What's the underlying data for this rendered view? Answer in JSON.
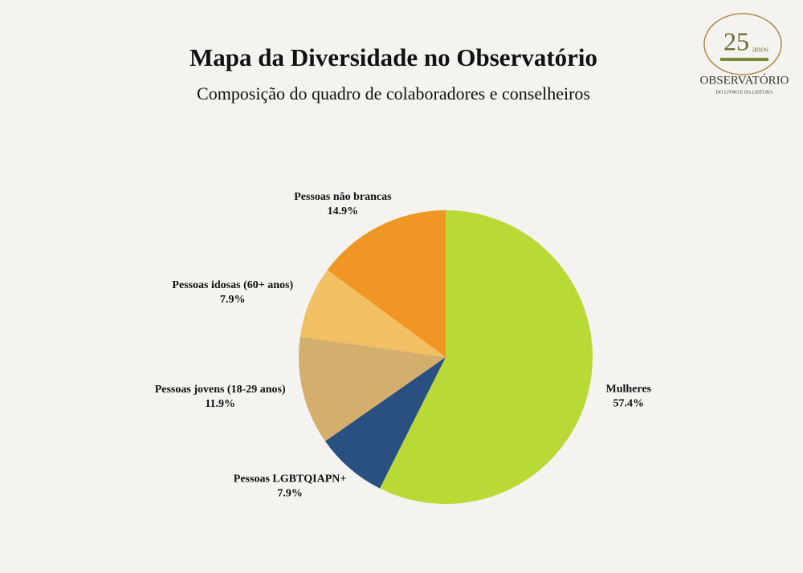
{
  "chart_data": {
    "type": "pie",
    "title": "Mapa da Diversidade no Observatório",
    "subtitle": "Composição do quadro de colaboradores e conselheiros",
    "categories": [
      "Mulheres",
      "Pessoas LGBTQIAPN+",
      "Pessoas jovens (18-29 anos)",
      "Pessoas idosas (60+ anos)",
      "Pessoas não brancas"
    ],
    "values": [
      57.4,
      7.9,
      11.9,
      7.9,
      14.9
    ],
    "value_labels": [
      "57.4%",
      "7.9%",
      "11.9%",
      "7.9%",
      "14.9%"
    ],
    "colors": [
      "#b8d936",
      "#2a5082",
      "#d4ae6c",
      "#f2c062",
      "#f09624"
    ],
    "logo": {
      "number": "25",
      "suffix": "anos",
      "name": "OBSERVATÓRIO",
      "tagline": "DO LIVRO E DA LEITURA"
    }
  }
}
